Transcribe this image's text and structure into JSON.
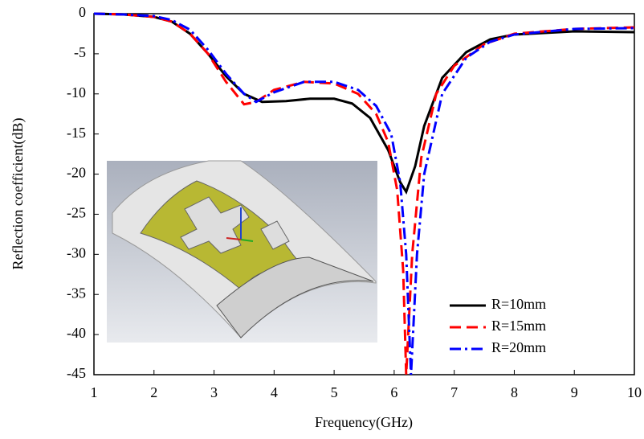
{
  "chart_data": {
    "type": "line",
    "x_label": "Frequency(GHz)",
    "y_label": "Reflection coefficient(dB)",
    "xlim": [
      1,
      10
    ],
    "xticks": [
      1,
      2,
      3,
      4,
      5,
      6,
      7,
      8,
      9,
      10
    ],
    "ylim": [
      -45,
      0
    ],
    "yticks": [
      0,
      -5,
      -10,
      -15,
      -20,
      -25,
      -30,
      -35,
      -40,
      -45
    ],
    "legend": "lower right",
    "series": [
      {
        "name": "R=10mm",
        "color": "#000000",
        "style": "solid",
        "x": [
          1,
          1.5,
          2,
          2.3,
          2.6,
          2.9,
          3.2,
          3.5,
          3.8,
          4.2,
          4.6,
          5,
          5.3,
          5.6,
          5.9,
          6.1,
          6.2,
          6.35,
          6.5,
          6.8,
          7.2,
          7.6,
          8,
          9,
          10
        ],
        "values": [
          0,
          -0.1,
          -0.4,
          -1,
          -2.5,
          -5,
          -7.8,
          -10,
          -11,
          -10.9,
          -10.6,
          -10.6,
          -11.2,
          -13,
          -17,
          -21,
          -22.2,
          -19,
          -14,
          -8,
          -4.8,
          -3.2,
          -2.6,
          -2.2,
          -2.3
        ]
      },
      {
        "name": "R=15mm",
        "color": "#ff0000",
        "style": "dashed",
        "x": [
          1,
          1.5,
          2,
          2.3,
          2.6,
          2.9,
          3.2,
          3.5,
          3.7,
          4,
          4.5,
          5,
          5.4,
          5.7,
          5.9,
          6.05,
          6.15,
          6.2,
          6.3,
          6.45,
          6.7,
          7,
          7.5,
          8,
          9,
          10
        ],
        "values": [
          0,
          -0.1,
          -0.4,
          -1,
          -2.5,
          -5,
          -8.5,
          -11.3,
          -11,
          -9.5,
          -8.5,
          -8.7,
          -10,
          -12.5,
          -16,
          -22,
          -32,
          -45,
          -30,
          -18,
          -10,
          -6.5,
          -3.8,
          -2.5,
          -1.9,
          -1.7
        ]
      },
      {
        "name": "R=20mm",
        "color": "#0000ff",
        "style": "dashdot",
        "x": [
          1,
          1.5,
          2,
          2.3,
          2.6,
          2.9,
          3.2,
          3.5,
          3.7,
          4,
          4.5,
          5,
          5.4,
          5.7,
          5.95,
          6.1,
          6.2,
          6.28,
          6.38,
          6.5,
          6.8,
          7.2,
          7.6,
          8,
          9,
          10
        ],
        "values": [
          0,
          -0.1,
          -0.3,
          -0.8,
          -2,
          -4.5,
          -7.5,
          -10,
          -11,
          -9.8,
          -8.5,
          -8.5,
          -9.5,
          -11.5,
          -15,
          -21,
          -30,
          -45,
          -30,
          -20,
          -10,
          -5.5,
          -3.5,
          -2.6,
          -1.9,
          -1.8
        ]
      }
    ]
  }
}
